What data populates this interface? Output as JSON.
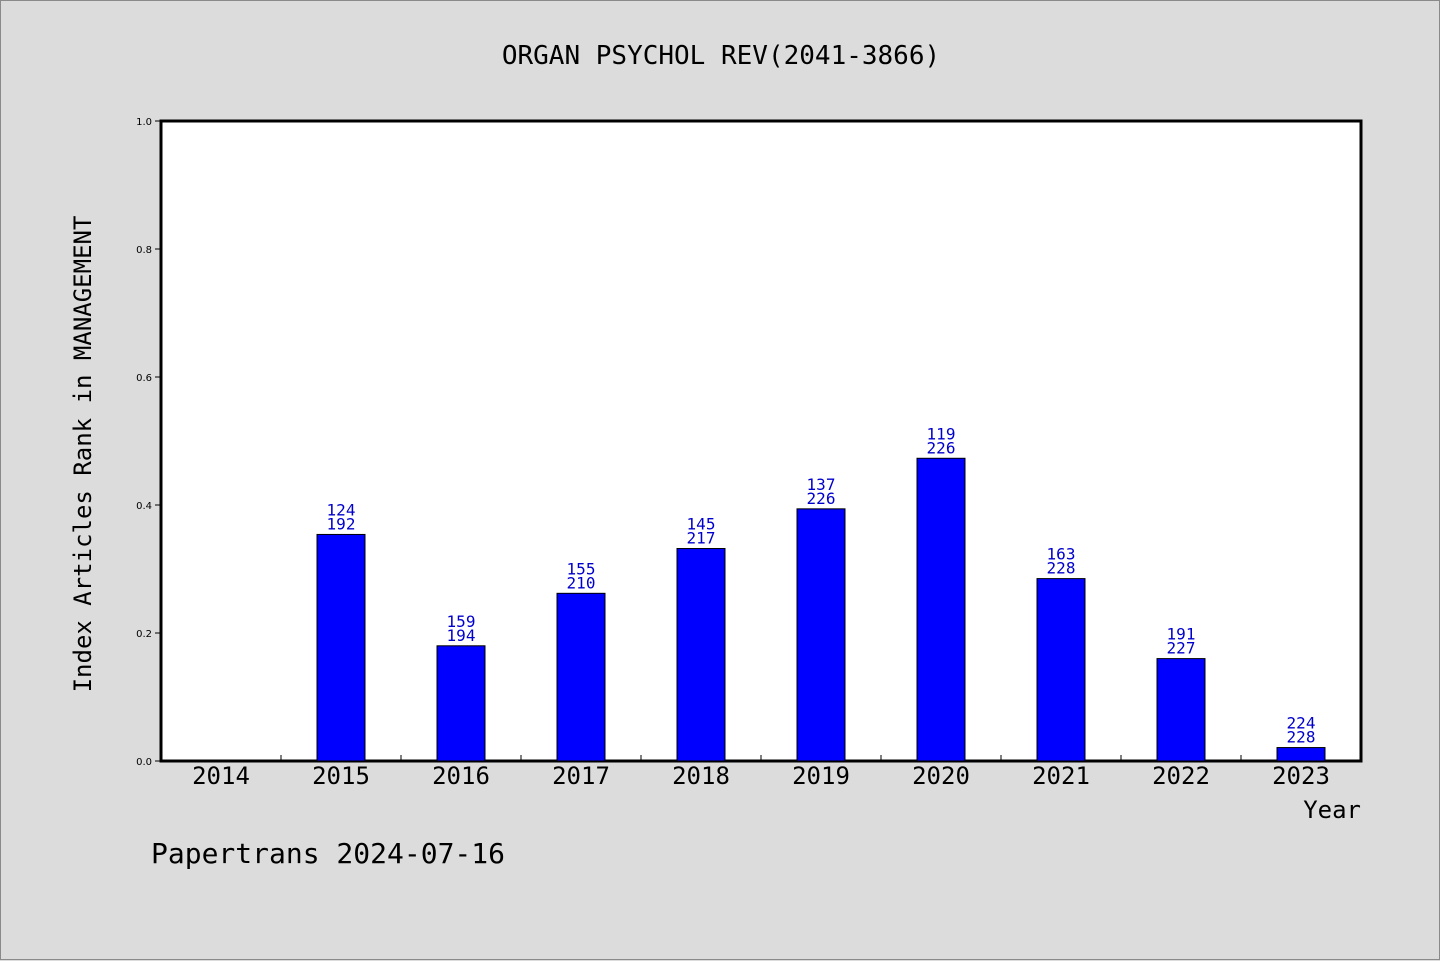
{
  "chart_data": {
    "type": "bar",
    "title": "ORGAN PSYCHOL REV(2041-3866)",
    "xlabel": "Year",
    "ylabel": "Index Articles Rank in MANAGEMENT",
    "categories": [
      "2014",
      "2015",
      "2016",
      "2017",
      "2018",
      "2019",
      "2020",
      "2021",
      "2022",
      "2023"
    ],
    "values": [
      0,
      0.354,
      0.18,
      0.262,
      0.332,
      0.394,
      0.473,
      0.285,
      0.16,
      0.021
    ],
    "labels_top": [
      "",
      "124",
      "159",
      "155",
      "145",
      "137",
      "119",
      "163",
      "191",
      "224"
    ],
    "labels_bottom": [
      "",
      "192",
      "194",
      "210",
      "217",
      "226",
      "226",
      "228",
      "227",
      "228"
    ],
    "ylim": [
      0,
      1.0
    ],
    "yticks": [
      "0.0",
      "0.2",
      "0.4",
      "0.6",
      "0.8",
      "1.0"
    ],
    "grid": false,
    "bar_color": "#0000ff",
    "label_color": "#0000cc"
  },
  "footer": "Papertrans 2024-07-16",
  "colors": {
    "background": "#dcdcdc",
    "plot_background": "#ffffff",
    "axis": "#000000"
  }
}
